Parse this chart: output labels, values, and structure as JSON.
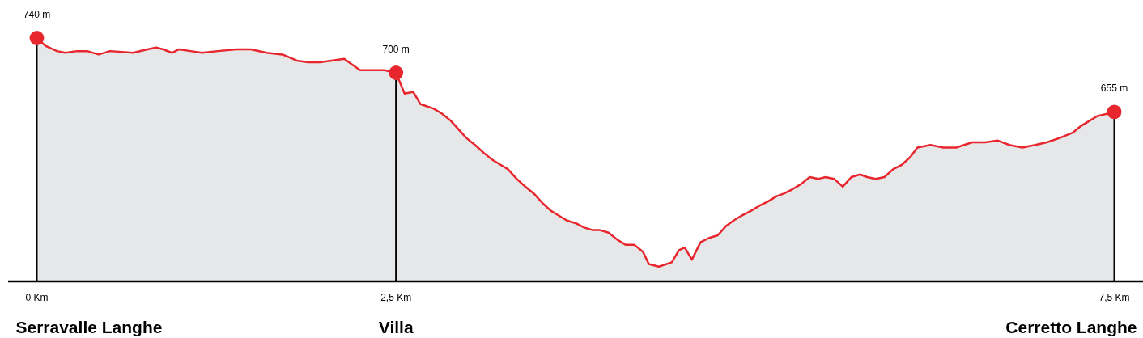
{
  "chart_data": {
    "type": "area",
    "xlim": [
      -0.2,
      7.7
    ],
    "ylim": [
      460,
      740
    ],
    "xticks": [
      {
        "value": 0,
        "label": "0 Km"
      },
      {
        "value": 2.5,
        "label": "2,5 Km"
      },
      {
        "value": 7.5,
        "label": "7,5 Km"
      }
    ],
    "ref_lines": [
      {
        "axis": "x",
        "value": 0,
        "label": "Serravalle Langhe",
        "color": "#000000"
      },
      {
        "axis": "x",
        "value": 2.5,
        "label": "Villa",
        "color": "#000000"
      },
      {
        "axis": "x",
        "value": 7.5,
        "label": "Cerretto Langhe",
        "color": "#000000"
      }
    ],
    "series": [
      {
        "color": "#e8262d",
        "x": [
          0,
          0.06,
          0.14,
          0.2,
          0.28,
          0.35,
          0.43,
          0.51,
          0.67,
          0.77,
          0.83,
          0.88,
          0.94,
          0.99,
          1.07,
          1.15,
          1.26,
          1.39,
          1.49,
          1.6,
          1.71,
          1.81,
          1.89,
          1.97,
          2.05,
          2.14,
          2.19,
          2.25,
          2.34,
          2.42,
          2.5,
          2.56,
          2.62,
          2.67,
          2.76,
          2.82,
          2.88,
          2.94,
          2.99,
          3.05,
          3.11,
          3.17,
          3.23,
          3.28,
          3.34,
          3.4,
          3.46,
          3.52,
          3.58,
          3.63,
          3.69,
          3.75,
          3.81,
          3.87,
          3.92,
          3.98,
          4.04,
          4.1,
          4.16,
          4.22,
          4.26,
          4.33,
          4.42,
          4.47,
          4.51,
          4.56,
          4.62,
          4.68,
          4.74,
          4.8,
          4.85,
          4.91,
          4.97,
          5.03,
          5.09,
          5.15,
          5.2,
          5.26,
          5.32,
          5.38,
          5.44,
          5.49,
          5.55,
          5.61,
          5.67,
          5.73,
          5.78,
          5.84,
          5.9,
          5.96,
          6.02,
          6.08,
          6.13,
          6.22,
          6.31,
          6.4,
          6.51,
          6.6,
          6.69,
          6.77,
          6.86,
          6.95,
          7.03,
          7.12,
          7.21,
          7.27,
          7.33,
          7.38,
          7.5
        ],
        "values": [
          740,
          731,
          725,
          723,
          725,
          725,
          721,
          725,
          723,
          727,
          729,
          727,
          723,
          727,
          725,
          723,
          725,
          727,
          727,
          723,
          721,
          714,
          712,
          712,
          714,
          716,
          710,
          703,
          703,
          703,
          700,
          676,
          678,
          664,
          659,
          653,
          645,
          634,
          625,
          617,
          608,
          600,
          594,
          589,
          578,
          569,
          561,
          550,
          541,
          536,
          530,
          527,
          522,
          519,
          519,
          516,
          508,
          502,
          502,
          494,
          480,
          477,
          482,
          496,
          499,
          485,
          505,
          510,
          513,
          524,
          530,
          536,
          541,
          547,
          552,
          558,
          561,
          566,
          572,
          580,
          578,
          580,
          578,
          569,
          580,
          583,
          580,
          578,
          580,
          589,
          594,
          603,
          614,
          617,
          614,
          614,
          620,
          620,
          622,
          617,
          614,
          617,
          620,
          625,
          631,
          639,
          645,
          650,
          655
        ]
      },
      {
        "type": "scatter",
        "color": "#e8262d",
        "marker": "circle",
        "x": [
          0,
          2.5,
          7.5
        ],
        "values": [
          740,
          700,
          655
        ],
        "value_labels": [
          "740 m",
          "700 m",
          "655 m"
        ]
      }
    ]
  }
}
